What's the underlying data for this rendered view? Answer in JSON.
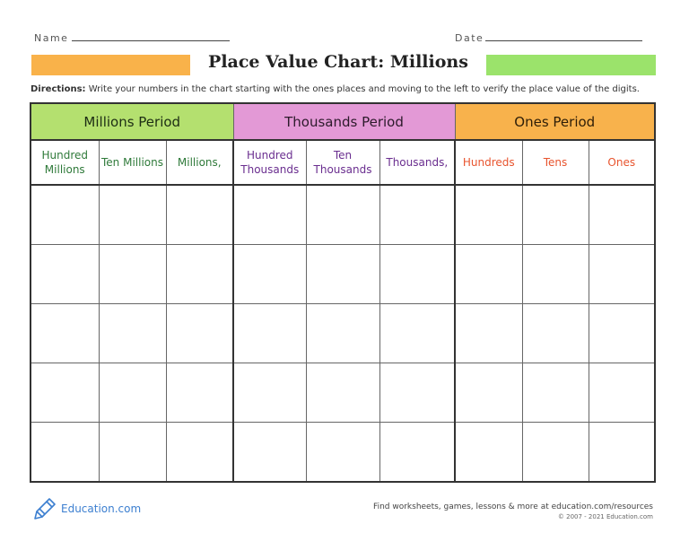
{
  "header": {
    "name_label": "Name",
    "date_label": "Date",
    "title": "Place Value Chart: Millions",
    "colors": {
      "left_bar": "#f9b24a",
      "right_bar": "#9be36b"
    }
  },
  "directions": {
    "label": "Directions:",
    "text": " Write your numbers in the chart starting with the ones places and moving to the left to verify the place value of the digits."
  },
  "table": {
    "periods": [
      "Millions Period",
      "Thousands Period",
      "Ones Period"
    ],
    "places": [
      "Hundred Millions",
      "Ten Millions",
      "Millions,",
      "Hundred Thousands",
      "Ten Thousands",
      "Thousands,",
      "Hundreds",
      "Tens",
      "Ones"
    ],
    "colors": {
      "millions": "#b4e06f",
      "thousands": "#e399d6",
      "ones": "#f8b24c",
      "millions_text": "#2f7a3a",
      "thousands_text": "#6a2e8f",
      "ones_text": "#e8542e"
    }
  },
  "footer": {
    "logo_text": "Education.com",
    "logo_icon": "pencil-icon",
    "find": "Find worksheets, games, lessons & more at education.com/resources",
    "copyright": "© 2007 - 2021 Education.com"
  }
}
